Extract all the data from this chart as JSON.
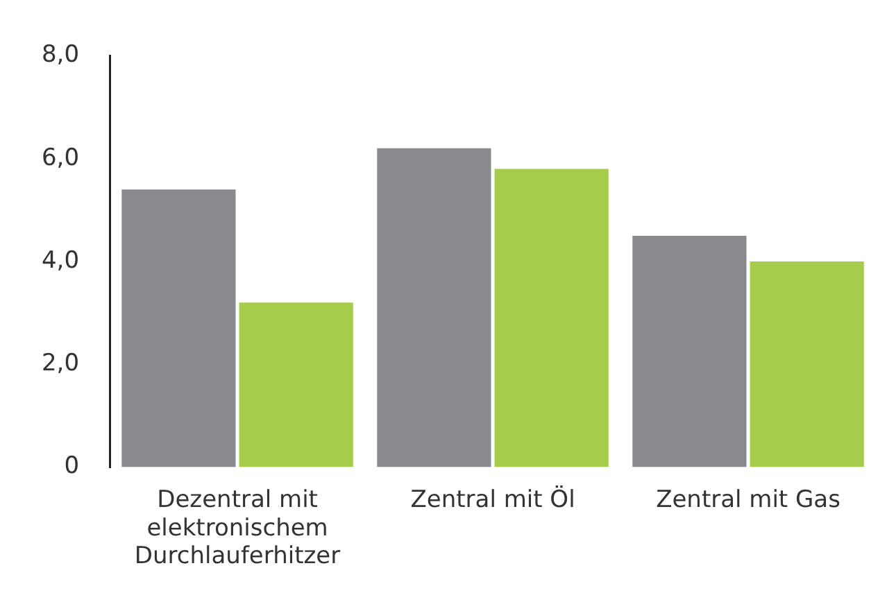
{
  "chart_data": {
    "type": "bar",
    "categories": [
      "Dezentral mit elektronischem Durchlauferhitzer",
      "Zentral mit Öl",
      "Zentral mit Gas"
    ],
    "series": [
      {
        "color": "#898a8d",
        "values": [
          5.4,
          6.2,
          4.5
        ]
      },
      {
        "color": "#a5cd4b",
        "values": [
          3.2,
          5.8,
          4.0
        ]
      }
    ],
    "ylim": [
      0,
      8
    ],
    "yticks": [
      {
        "value": 0,
        "label": "0"
      },
      {
        "value": 2,
        "label": "2,0"
      },
      {
        "value": 4,
        "label": "4,0"
      },
      {
        "value": 6,
        "label": "6,0"
      },
      {
        "value": 8,
        "label": "8,0"
      }
    ],
    "grid": false,
    "legend": false
  }
}
